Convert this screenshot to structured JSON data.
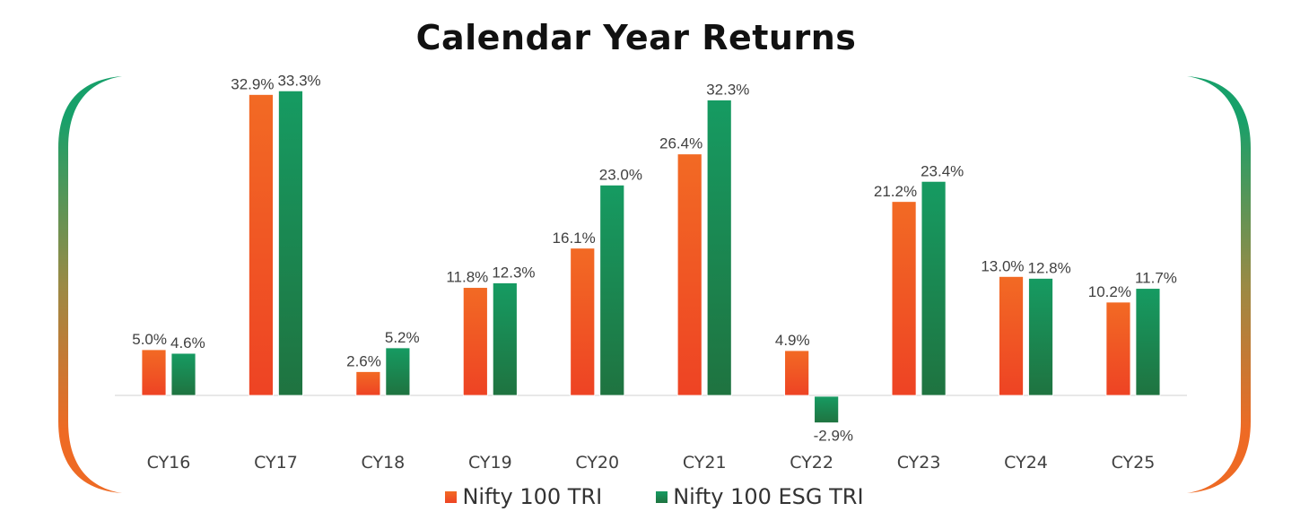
{
  "chart_data": {
    "type": "bar",
    "title": "Calendar Year Returns",
    "xlabel": "",
    "ylabel": "",
    "categories": [
      "CY16",
      "CY17",
      "CY18",
      "CY19",
      "CY20",
      "CY21",
      "CY22",
      "CY23",
      "CY24",
      "CY25"
    ],
    "series": [
      {
        "name": "Nifty 100 TRI",
        "color_top": "#F26A24",
        "color_bottom": "#EE4324",
        "values": [
          5.0,
          32.9,
          2.6,
          11.8,
          16.1,
          26.4,
          4.9,
          21.2,
          13.0,
          10.2
        ],
        "labels": [
          "5.0%",
          "32.9%",
          "2.6%",
          "11.8%",
          "16.1%",
          "26.4%",
          "4.9%",
          "21.2%",
          "13.0%",
          "10.2%"
        ]
      },
      {
        "name": "Nifty 100 ESG TRI",
        "color_top": "#169B62",
        "color_bottom": "#1F7340",
        "values": [
          4.6,
          33.3,
          5.2,
          12.3,
          23.0,
          32.3,
          -2.9,
          23.4,
          12.8,
          11.7
        ],
        "labels": [
          "4.6%",
          "33.3%",
          "5.2%",
          "12.3%",
          "23.0%",
          "32.3%",
          "-2.9%",
          "23.4%",
          "12.8%",
          "11.7%"
        ]
      }
    ],
    "ylim": [
      -5,
      35
    ],
    "grid": false,
    "legend_position": "bottom"
  }
}
